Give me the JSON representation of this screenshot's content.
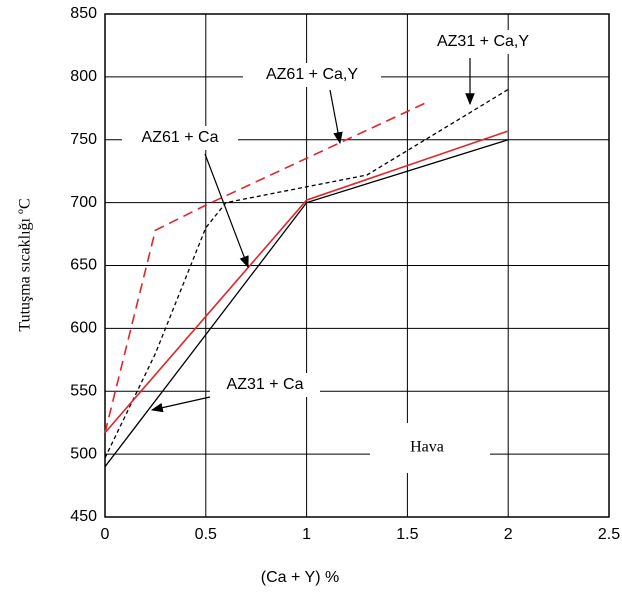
{
  "chart_data": {
    "type": "line",
    "xlabel": "(Ca + Y) %",
    "ylabel": "Tutuşma sıcaklığı  ºC",
    "xlim": [
      0,
      2.5
    ],
    "xticks": [
      0,
      0.5,
      1,
      1.5,
      2,
      2.5
    ],
    "ylim": [
      450,
      850
    ],
    "yticks": [
      450,
      500,
      550,
      600,
      650,
      700,
      750,
      800,
      850
    ],
    "grid": true,
    "series": [
      {
        "name": "AZ31 + Ca,Y",
        "color": "#000000",
        "linestyle": "dashed",
        "x": [
          0,
          0.25,
          0.5,
          0.6,
          1.3,
          2
        ],
        "values": [
          497,
          580,
          680,
          700,
          722,
          790
        ]
      },
      {
        "name": "AZ61 + Ca,Y",
        "color": "#e0262b",
        "linestyle": "dashed",
        "x": [
          0,
          0.25,
          0.5,
          1.6
        ],
        "values": [
          517,
          678,
          698,
          780
        ]
      },
      {
        "name": "AZ61 + Ca",
        "color": "#e0262b",
        "linestyle": "solid",
        "x": [
          0,
          1,
          2
        ],
        "values": [
          517,
          702,
          757
        ]
      },
      {
        "name": "AZ31 + Ca",
        "color": "#000000",
        "linestyle": "solid",
        "x": [
          0,
          1,
          2
        ],
        "values": [
          490,
          700,
          750
        ]
      }
    ],
    "annotations": [
      "Hava"
    ]
  }
}
